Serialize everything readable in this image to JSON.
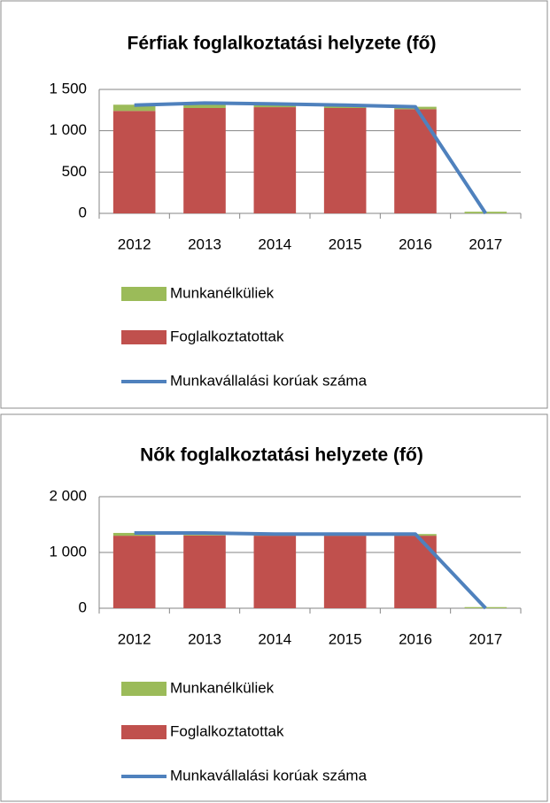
{
  "chart_data": [
    {
      "type": "bar",
      "stacked": true,
      "title": "Férfiak foglalkoztatási helyzete (fő)",
      "categories": [
        "2012",
        "2013",
        "2014",
        "2015",
        "2016",
        "2017"
      ],
      "series": [
        {
          "name": "Munkanélküliek",
          "type": "bar",
          "color": "#9bbb59",
          "values": [
            75,
            50,
            25,
            20,
            30,
            20
          ]
        },
        {
          "name": "Foglalkoztatottak",
          "type": "bar",
          "color": "#c0504d",
          "values": [
            1240,
            1275,
            1285,
            1275,
            1260,
            0
          ]
        },
        {
          "name": "Munkavállalási korúak száma",
          "type": "line",
          "color": "#4f81bd",
          "values": [
            1310,
            1335,
            1325,
            1310,
            1290,
            0
          ]
        }
      ],
      "ylim": [
        0,
        1500
      ],
      "yticks": [
        0,
        500,
        {
          "value": 1000,
          "label": "1 000"
        },
        {
          "value": 1500,
          "label": "1 500"
        }
      ],
      "grid": true
    },
    {
      "type": "bar",
      "stacked": true,
      "title": "Nők foglalkoztatási helyzete (fő)",
      "categories": [
        "2012",
        "2013",
        "2014",
        "2015",
        "2016",
        "2017"
      ],
      "series": [
        {
          "name": "Munkanélküliek",
          "type": "bar",
          "color": "#9bbb59",
          "values": [
            50,
            40,
            30,
            30,
            30,
            20
          ]
        },
        {
          "name": "Foglalkoztatottak",
          "type": "bar",
          "color": "#c0504d",
          "values": [
            1300,
            1305,
            1300,
            1300,
            1300,
            0
          ]
        },
        {
          "name": "Munkavállalási korúak száma",
          "type": "line",
          "color": "#4f81bd",
          "values": [
            1350,
            1350,
            1330,
            1330,
            1330,
            0
          ]
        }
      ],
      "ylim": [
        0,
        2000
      ],
      "yticks": [
        0,
        {
          "value": 1000,
          "label": "1 000"
        },
        {
          "value": 2000,
          "label": "2 000"
        }
      ],
      "grid": true
    }
  ]
}
